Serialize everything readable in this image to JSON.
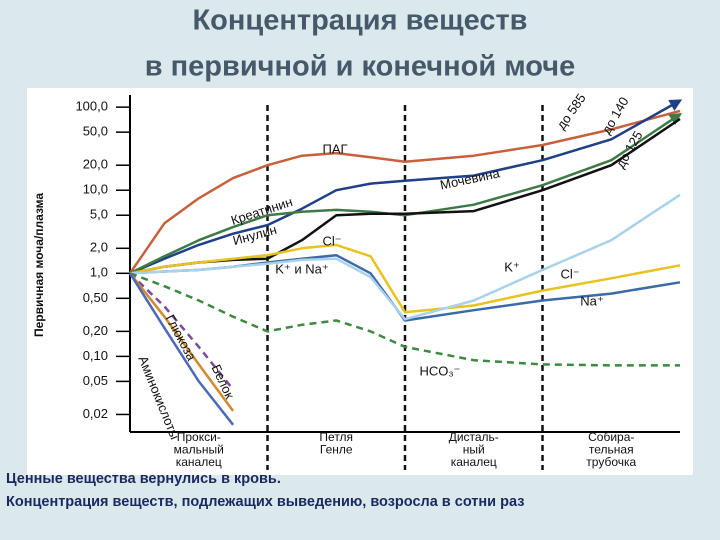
{
  "chart_data": {
    "type": "line",
    "title": [
      "Концентрация веществ",
      "в первичной и конечной моче"
    ],
    "y_label": "Первичная моча/плазма",
    "log_y": true,
    "ylim": [
      0.013,
      140
    ],
    "yticks": [
      {
        "value": 100,
        "label": "100,0"
      },
      {
        "value": 50,
        "label": "50,0"
      },
      {
        "value": 20,
        "label": "20,0"
      },
      {
        "value": 10,
        "label": "10,0"
      },
      {
        "value": 5,
        "label": "5,0"
      },
      {
        "value": 2,
        "label": "2,0"
      },
      {
        "value": 1,
        "label": "1,0"
      },
      {
        "value": 0.5,
        "label": "0,50"
      },
      {
        "value": 0.2,
        "label": "0,20"
      },
      {
        "value": 0.1,
        "label": "0,10"
      },
      {
        "value": 0.05,
        "label": "0,05"
      },
      {
        "value": 0.02,
        "label": "0,02"
      }
    ],
    "xlim": [
      0,
      4
    ],
    "categories": [
      [
        "Прокси-",
        "мальный",
        "каналец"
      ],
      [
        "Петля",
        "Генле"
      ],
      [
        "Дисталь-",
        "ный",
        "каналец"
      ],
      [
        "Собира-",
        "тельная",
        "трубочка"
      ]
    ],
    "x": [
      0,
      0.25,
      0.5,
      0.75,
      1,
      1.25,
      1.5,
      1.75,
      2,
      2.5,
      3,
      3.5,
      4
    ],
    "series": [
      {
        "name": "ПАГ",
        "color": "#c8603c",
        "values": [
          1,
          4,
          8,
          14,
          20,
          26,
          28,
          25,
          22,
          26,
          35,
          54,
          90
        ]
      },
      {
        "name": "Мочевина",
        "color": "#1f3f86",
        "arrow": true,
        "values": [
          1,
          1.5,
          2.2,
          3,
          3.8,
          6,
          10,
          12,
          13,
          15,
          23,
          41,
          120
        ]
      },
      {
        "name": "Креатинин",
        "color": "#3f7a46",
        "arrow": true,
        "values": [
          1,
          1.6,
          2.5,
          3.6,
          5,
          5.5,
          5.8,
          5.5,
          5,
          6.7,
          11.5,
          23,
          82
        ]
      },
      {
        "name": "Инулин",
        "color": "#111111",
        "values": [
          1,
          1.2,
          1.35,
          1.45,
          1.5,
          2.5,
          5,
          5.2,
          5.2,
          5.6,
          10,
          20,
          72
        ]
      },
      {
        "name": "Cl⁻",
        "color": "#e8c21e",
        "values": [
          1,
          1.2,
          1.35,
          1.5,
          1.65,
          2,
          2.2,
          1.6,
          0.34,
          0.41,
          0.62,
          0.87,
          1.25
        ]
      },
      {
        "name": "K⁺ и Na⁺",
        "color": "#3a6aa8",
        "values": [
          1,
          1.05,
          1.1,
          1.2,
          1.35,
          1.5,
          1.65,
          1,
          0.27,
          0.36,
          0.47,
          0.57,
          0.78
        ]
      },
      {
        "color": "#a9d2ea",
        "values": [
          1,
          1.05,
          1.1,
          1.2,
          1.3,
          1.45,
          1.5,
          0.9,
          0.28,
          0.47,
          1.1,
          2.5,
          8.8
        ]
      },
      {
        "name": "HCO₃⁻",
        "color": "#3c8a40",
        "dashed": true,
        "values": [
          1,
          0.7,
          0.47,
          0.3,
          0.2,
          0.24,
          0.27,
          0.2,
          0.13,
          0.09,
          0.08,
          0.078,
          0.078
        ]
      },
      {
        "name": "Глюкоза",
        "color": "#7a4a9e",
        "dashed": true,
        "values": [
          1,
          0.4,
          0.13,
          0.04,
          null,
          null,
          null,
          null,
          null,
          null,
          null,
          null,
          null
        ]
      },
      {
        "name": "Белок",
        "color": "#d08a2c",
        "values": [
          1,
          0.3,
          0.08,
          0.022,
          null,
          null,
          null,
          null,
          null,
          null,
          null,
          null,
          null
        ]
      },
      {
        "name": "Аминокислоты",
        "color": "#4a6ab8",
        "values": [
          1,
          0.22,
          0.05,
          0.015,
          null,
          null,
          null,
          null,
          null,
          null,
          null,
          null,
          null
        ]
      }
    ],
    "annotations": [
      "до 585",
      "до 140",
      "до 125",
      "K⁺",
      "Cl⁻",
      "Na⁺"
    ]
  },
  "footer": [
    "Ценные вещества вернулись в кровь.",
    "Концентрация веществ, подлежащих выведению, возросла в сотни раз"
  ]
}
